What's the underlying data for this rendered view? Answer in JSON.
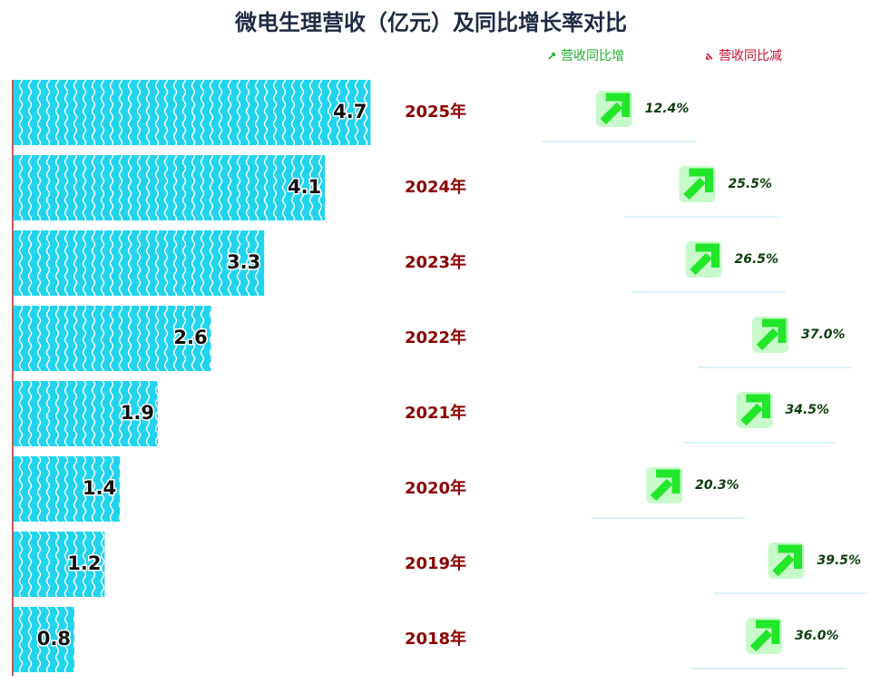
{
  "chart_data": {
    "type": "bar",
    "title": "微电生理营收（亿元）及同比增长率对比",
    "categories": [
      "2025年",
      "2024年",
      "2023年",
      "2022年",
      "2021年",
      "2020年",
      "2019年",
      "2018年"
    ],
    "values": [
      4.7,
      4.1,
      3.3,
      2.6,
      1.9,
      1.4,
      1.2,
      0.8
    ],
    "color": "#22d3ee",
    "growth": {
      "values": [
        12.4,
        25.5,
        26.5,
        37.0,
        34.5,
        20.3,
        39.5,
        36.0
      ],
      "value_labels": [
        "12.4%",
        "25.5%",
        "26.5%",
        "37.0%",
        "34.5%",
        "20.3%",
        "39.5%",
        "36.0%"
      ],
      "color": "#22e62a"
    },
    "legend": [
      {
        "label": "营收同比增",
        "color": "#1fae2a"
      },
      {
        "label": "营收同比减",
        "color": "#c8102e"
      }
    ]
  }
}
